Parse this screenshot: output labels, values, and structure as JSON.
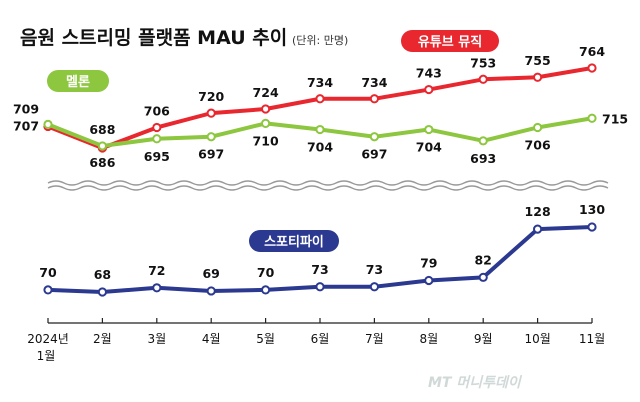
{
  "header": {
    "title": "음원 스트리밍 플랫폼 MAU 추이",
    "unit": "(단위: 만명)"
  },
  "colors": {
    "youtube_music": "#e8272f",
    "melon": "#8dc63f",
    "spotify": "#2b3990",
    "axis": "#222222",
    "text": "#111111"
  },
  "watermark": "MT 머니투데이",
  "chart_data": [
    {
      "type": "line",
      "title": "음원 스트리밍 플랫폼 MAU 추이",
      "unit": "만명",
      "categories": [
        "2024년 1월",
        "2월",
        "3월",
        "4월",
        "5월",
        "6월",
        "7월",
        "8월",
        "9월",
        "10월",
        "11월"
      ],
      "series": [
        {
          "name": "유튜브 뮤직",
          "color": "#e8272f",
          "values": [
            707,
            686,
            706,
            720,
            724,
            734,
            734,
            743,
            753,
            755,
            764
          ]
        },
        {
          "name": "멜론",
          "color": "#8dc63f",
          "values": [
            709,
            688,
            695,
            697,
            710,
            704,
            697,
            704,
            693,
            706,
            715
          ]
        }
      ],
      "ylim": [
        680,
        770
      ]
    },
    {
      "type": "line",
      "categories": [
        "2024년 1월",
        "2월",
        "3월",
        "4월",
        "5월",
        "6월",
        "7월",
        "8월",
        "9월",
        "10월",
        "11월"
      ],
      "series": [
        {
          "name": "스포티파이",
          "color": "#2b3990",
          "values": [
            70,
            68,
            72,
            69,
            70,
            73,
            73,
            79,
            82,
            128,
            130
          ]
        }
      ],
      "ylim": [
        40,
        150
      ]
    }
  ]
}
